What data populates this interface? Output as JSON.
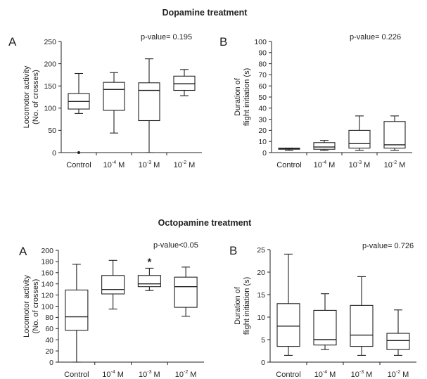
{
  "sections": [
    {
      "title": "Dopamine treatment"
    },
    {
      "title": "Octopamine treatment"
    }
  ],
  "chart_data": [
    {
      "type": "box",
      "section": "Dopamine treatment",
      "panel": "A",
      "pvalue_text": "p-value= 0.195",
      "ylabel": [
        "Locomotor activity",
        "(No. of crosses)"
      ],
      "xlabel": "",
      "ylim": [
        0,
        250
      ],
      "yticks": [
        0,
        50,
        100,
        150,
        200,
        250
      ],
      "categories": [
        {
          "base": "Control",
          "sup": "",
          "unit": ""
        },
        {
          "base": "10",
          "sup": "-4",
          "unit": " M"
        },
        {
          "base": "10",
          "sup": "-3",
          "unit": " M"
        },
        {
          "base": "10",
          "sup": "-2",
          "unit": " M"
        }
      ],
      "boxes": [
        {
          "min": 88,
          "q1": 98,
          "median": 115,
          "q3": 133,
          "max": 178,
          "outliers": [
            0
          ]
        },
        {
          "min": 44,
          "q1": 95,
          "median": 142,
          "q3": 158,
          "max": 180,
          "outliers": []
        },
        {
          "min": 0,
          "q1": 72,
          "median": 140,
          "q3": 157,
          "max": 211,
          "outliers": []
        },
        {
          "min": 128,
          "q1": 140,
          "median": 155,
          "q3": 172,
          "max": 187,
          "outliers": []
        }
      ],
      "annotations": []
    },
    {
      "type": "box",
      "section": "Dopamine treatment",
      "panel": "B",
      "pvalue_text": "p-value= 0.226",
      "ylabel": [
        "Duration of",
        "flight initiation (s)"
      ],
      "xlabel": "",
      "ylim": [
        0,
        100
      ],
      "yticks": [
        0,
        10,
        20,
        30,
        40,
        50,
        60,
        70,
        80,
        90,
        100
      ],
      "categories": [
        {
          "base": "Control",
          "sup": "",
          "unit": ""
        },
        {
          "base": "10",
          "sup": "-4",
          "unit": " M"
        },
        {
          "base": "10",
          "sup": "-3",
          "unit": " M"
        },
        {
          "base": "10",
          "sup": "-2",
          "unit": " M"
        }
      ],
      "boxes": [
        {
          "min": 2,
          "q1": 3,
          "median": 3.5,
          "q3": 4,
          "max": 4,
          "outliers": []
        },
        {
          "min": 2,
          "q1": 3,
          "median": 5,
          "q3": 9,
          "max": 11,
          "outliers": []
        },
        {
          "min": 2,
          "q1": 4,
          "median": 8,
          "q3": 20,
          "max": 33,
          "outliers": []
        },
        {
          "min": 2,
          "q1": 4,
          "median": 7,
          "q3": 28,
          "max": 33,
          "outliers": []
        }
      ],
      "annotations": []
    },
    {
      "type": "box",
      "section": "Octopamine treatment",
      "panel": "A",
      "pvalue_text": "p-value<0.05",
      "ylabel": [
        "Locomotor activity",
        "(No. of crosses)"
      ],
      "xlabel": "",
      "ylim": [
        0,
        200
      ],
      "yticks": [
        0,
        20,
        40,
        60,
        80,
        100,
        120,
        140,
        160,
        180,
        200
      ],
      "categories": [
        {
          "base": "Control",
          "sup": "",
          "unit": ""
        },
        {
          "base": "10",
          "sup": "-4",
          "unit": " M"
        },
        {
          "base": "10",
          "sup": "-3",
          "unit": " M"
        },
        {
          "base": "10",
          "sup": "-2",
          "unit": " M"
        }
      ],
      "boxes": [
        {
          "min": 0,
          "q1": 57,
          "median": 81,
          "q3": 129,
          "max": 175,
          "outliers": []
        },
        {
          "min": 95,
          "q1": 122,
          "median": 130,
          "q3": 155,
          "max": 182,
          "outliers": []
        },
        {
          "min": 128,
          "q1": 135,
          "median": 140,
          "q3": 155,
          "max": 168,
          "outliers": []
        },
        {
          "min": 82,
          "q1": 98,
          "median": 135,
          "q3": 152,
          "max": 170,
          "outliers": []
        }
      ],
      "annotations": [
        {
          "category_index": 2,
          "text": "*"
        }
      ]
    },
    {
      "type": "box",
      "section": "Octopamine treatment",
      "panel": "B",
      "pvalue_text": "p-value= 0.726",
      "ylabel": [
        "Duration of",
        "flight initiation (s)"
      ],
      "xlabel": "",
      "ylim": [
        0,
        25
      ],
      "yticks": [
        0,
        5,
        10,
        15,
        20,
        25
      ],
      "categories": [
        {
          "base": "Control",
          "sup": "",
          "unit": ""
        },
        {
          "base": "10",
          "sup": "-4",
          "unit": " M"
        },
        {
          "base": "10",
          "sup": "-3",
          "unit": " M"
        },
        {
          "base": "10",
          "sup": "-2",
          "unit": " M"
        }
      ],
      "boxes": [
        {
          "min": 1.5,
          "q1": 3.5,
          "median": 8,
          "q3": 13,
          "max": 24,
          "outliers": []
        },
        {
          "min": 2.8,
          "q1": 3.8,
          "median": 5,
          "q3": 11.5,
          "max": 15.2,
          "outliers": []
        },
        {
          "min": 1.5,
          "q1": 3.5,
          "median": 6,
          "q3": 12.6,
          "max": 19,
          "outliers": []
        },
        {
          "min": 1.5,
          "q1": 2.8,
          "median": 4.8,
          "q3": 6.4,
          "max": 11.6,
          "outliers": []
        }
      ],
      "annotations": []
    }
  ]
}
